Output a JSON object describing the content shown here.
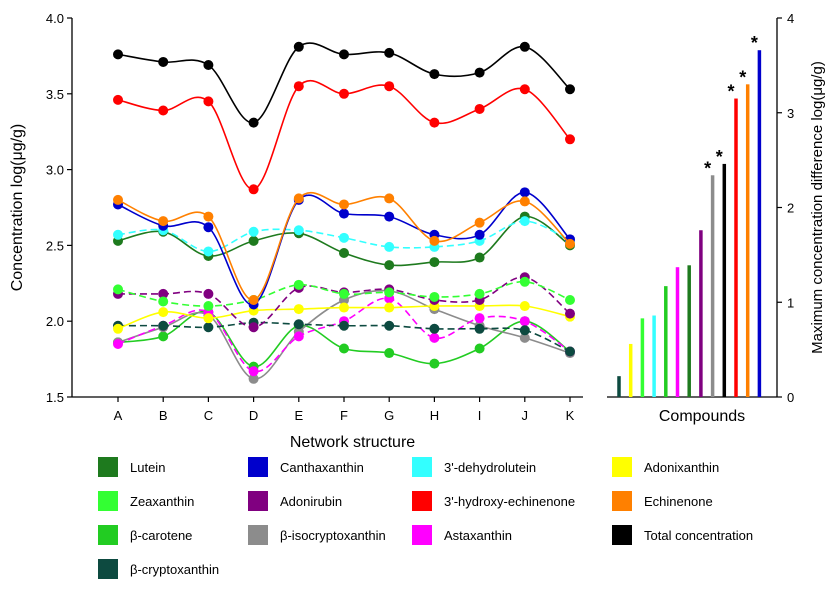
{
  "chart_data": [
    {
      "type": "line",
      "xlabel": "Network structure",
      "ylabel": "Concentration log(μg/g)",
      "ylim": [
        1.5,
        4.0
      ],
      "yticks": [
        "1.5",
        "2.0",
        "2.5",
        "3.0",
        "3.5",
        "4.0"
      ],
      "categories": [
        "A",
        "B",
        "C",
        "D",
        "E",
        "F",
        "G",
        "H",
        "I",
        "J",
        "K"
      ],
      "series": [
        {
          "name": "Total concentration",
          "color": "#000000",
          "dashed": false,
          "values": [
            3.76,
            3.71,
            3.69,
            3.31,
            3.81,
            3.76,
            3.77,
            3.63,
            3.64,
            3.81,
            3.53
          ]
        },
        {
          "name": "3'-hydroxy-echinenone",
          "color": "#ff0000",
          "dashed": false,
          "values": [
            3.46,
            3.39,
            3.45,
            2.87,
            3.55,
            3.5,
            3.55,
            3.31,
            3.4,
            3.53,
            3.2
          ]
        },
        {
          "name": "Echinenone",
          "color": "#ff8000",
          "dashed": false,
          "values": [
            2.8,
            2.66,
            2.69,
            2.14,
            2.81,
            2.77,
            2.81,
            2.53,
            2.65,
            2.79,
            2.51
          ]
        },
        {
          "name": "Canthaxanthin",
          "color": "#0000cc",
          "dashed": false,
          "values": [
            2.77,
            2.63,
            2.62,
            2.11,
            2.8,
            2.71,
            2.69,
            2.57,
            2.57,
            2.85,
            2.54
          ]
        },
        {
          "name": "3'-dehydrolutein",
          "color": "#33ffff",
          "dashed": true,
          "values": [
            2.57,
            2.6,
            2.46,
            2.59,
            2.6,
            2.55,
            2.49,
            2.49,
            2.53,
            2.66,
            2.53
          ]
        },
        {
          "name": "Lutein",
          "color": "#1e7a1e",
          "dashed": false,
          "values": [
            2.53,
            2.59,
            2.43,
            2.53,
            2.58,
            2.45,
            2.37,
            2.39,
            2.42,
            2.69,
            2.5
          ]
        },
        {
          "name": "Zeaxanthin",
          "color": "#33ff33",
          "dashed": true,
          "values": [
            2.21,
            2.13,
            2.1,
            2.14,
            2.24,
            2.18,
            2.19,
            2.16,
            2.18,
            2.26,
            2.14
          ]
        },
        {
          "name": "Adonirubin",
          "color": "#800080",
          "dashed": true,
          "values": [
            2.18,
            2.18,
            2.18,
            1.96,
            2.22,
            2.19,
            2.21,
            2.14,
            2.14,
            2.29,
            2.05
          ]
        },
        {
          "name": "Adonixanthin",
          "color": "#ffff00",
          "dashed": false,
          "values": [
            1.95,
            2.06,
            2.02,
            2.07,
            2.08,
            2.09,
            2.09,
            2.1,
            2.1,
            2.1,
            2.03
          ]
        },
        {
          "name": "β-cryptoxanthin",
          "color": "#0d4a40",
          "dashed": true,
          "values": [
            1.97,
            1.97,
            1.96,
            1.99,
            1.98,
            1.97,
            1.97,
            1.95,
            1.95,
            1.94,
            1.8
          ]
        },
        {
          "name": "Astaxanthin",
          "color": "#ff00ff",
          "dashed": true,
          "values": [
            1.85,
            1.97,
            2.06,
            1.67,
            1.9,
            2.0,
            2.15,
            1.89,
            2.02,
            2.0,
            1.8
          ]
        },
        {
          "name": "β-isocryptoxanthin",
          "color": "#8c8c8c",
          "dashed": false,
          "values": [
            1.86,
            1.96,
            2.04,
            1.62,
            1.93,
            2.14,
            2.2,
            2.08,
            1.97,
            1.89,
            1.79
          ]
        },
        {
          "name": "β-carotene",
          "color": "#22cc22",
          "dashed": false,
          "values": [
            1.86,
            1.9,
            2.06,
            1.7,
            1.97,
            1.82,
            1.79,
            1.72,
            1.82,
            2.0,
            1.8
          ]
        }
      ]
    },
    {
      "type": "bar",
      "xlabel": "Compounds",
      "ylabel": "Maximum concentration difference log(μg/g)",
      "ylim": [
        0,
        4
      ],
      "yticks": [
        "0",
        "1",
        "2",
        "3",
        "4"
      ],
      "bars": [
        {
          "color": "#0d4a40",
          "value": 0.22,
          "star": false
        },
        {
          "color": "#ffff00",
          "value": 0.56,
          "star": false
        },
        {
          "color": "#33ff33",
          "value": 0.83,
          "star": false
        },
        {
          "color": "#33ffff",
          "value": 0.86,
          "star": false
        },
        {
          "color": "#22cc22",
          "value": 1.17,
          "star": false
        },
        {
          "color": "#ff00ff",
          "value": 1.37,
          "star": false
        },
        {
          "color": "#1e7a1e",
          "value": 1.39,
          "star": false
        },
        {
          "color": "#800080",
          "value": 1.76,
          "star": false
        },
        {
          "color": "#8c8c8c",
          "value": 2.34,
          "star": true
        },
        {
          "color": "#000000",
          "value": 2.46,
          "star": true
        },
        {
          "color": "#ff0000",
          "value": 3.15,
          "star": true
        },
        {
          "color": "#ff8000",
          "value": 3.3,
          "star": true
        },
        {
          "color": "#0000cc",
          "value": 3.66,
          "star": true
        }
      ],
      "star_label": "*"
    }
  ],
  "legend": [
    {
      "label": "Lutein",
      "color": "#1e7a1e"
    },
    {
      "label": "Zeaxanthin",
      "color": "#33ff33"
    },
    {
      "label": "β-carotene",
      "color": "#22cc22"
    },
    {
      "label": "β-cryptoxanthin",
      "color": "#0d4a40"
    },
    {
      "label": "Canthaxanthin",
      "color": "#0000cc"
    },
    {
      "label": "Adonirubin",
      "color": "#800080"
    },
    {
      "label": "β-isocryptoxanthin",
      "color": "#8c8c8c"
    },
    {
      "label": "3'-dehydrolutein",
      "color": "#33ffff"
    },
    {
      "label": "3'-hydroxy-echinenone",
      "color": "#ff0000"
    },
    {
      "label": "Astaxanthin",
      "color": "#ff00ff"
    },
    {
      "label": "Adonixanthin",
      "color": "#ffff00"
    },
    {
      "label": "Echinenone",
      "color": "#ff8000"
    },
    {
      "label": "Total concentration",
      "color": "#000000"
    }
  ]
}
